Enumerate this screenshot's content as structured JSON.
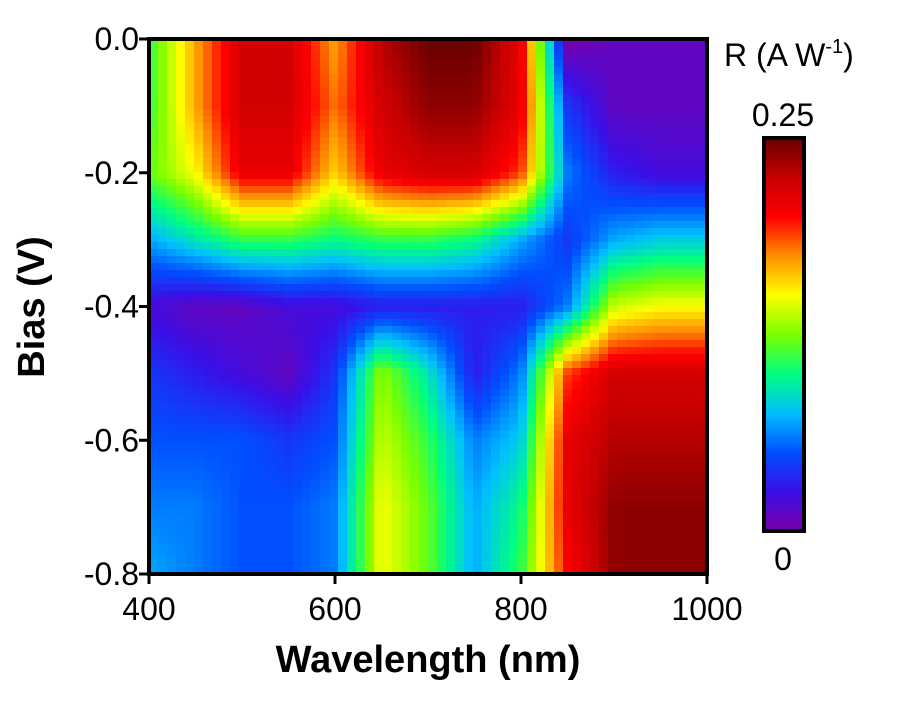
{
  "chart_data": {
    "type": "heatmap",
    "title": "",
    "xlabel": "Wavelength (nm)",
    "ylabel": "Bias (V)",
    "xlim": [
      400,
      1000
    ],
    "ylim": [
      -0.8,
      0.0
    ],
    "x_ticks": [
      {
        "value": 400,
        "label": "400"
      },
      {
        "value": 600,
        "label": "600"
      },
      {
        "value": 800,
        "label": "800"
      },
      {
        "value": 1000,
        "label": "1000"
      }
    ],
    "y_ticks": [
      {
        "value": 0.0,
        "label": "0.0"
      },
      {
        "value": -0.2,
        "label": "-0.2"
      },
      {
        "value": -0.4,
        "label": "-0.4"
      },
      {
        "value": -0.6,
        "label": "-0.6"
      },
      {
        "value": -0.8,
        "label": "-0.8"
      }
    ],
    "colorbar": {
      "label_main": "R (A W",
      "label_sup": "-1",
      "label_close": ")",
      "max_label": "0.25",
      "min_label": "0",
      "vmin": 0,
      "vmax": 0.25,
      "colormap": [
        "#7b00a8",
        "#3a10e8",
        "#0050ff",
        "#00c0ff",
        "#00ff80",
        "#7bff00",
        "#ffff00",
        "#ff9000",
        "#ff0000",
        "#c80000",
        "#6a0000"
      ]
    },
    "x": [
      400,
      450,
      500,
      550,
      600,
      650,
      700,
      750,
      800,
      850,
      900,
      950,
      1000
    ],
    "y": [
      0.0,
      -0.1,
      -0.2,
      -0.3,
      -0.4,
      -0.5,
      -0.6,
      -0.7,
      -0.8
    ],
    "z": [
      [
        0.11,
        0.17,
        0.22,
        0.22,
        0.17,
        0.23,
        0.25,
        0.25,
        0.21,
        0.0,
        0.01,
        0.01,
        0.01
      ],
      [
        0.11,
        0.17,
        0.22,
        0.22,
        0.18,
        0.22,
        0.24,
        0.24,
        0.21,
        0.04,
        0.01,
        0.01,
        0.01
      ],
      [
        0.12,
        0.15,
        0.21,
        0.21,
        0.16,
        0.21,
        0.22,
        0.22,
        0.19,
        0.06,
        0.03,
        0.02,
        0.02
      ],
      [
        0.07,
        0.09,
        0.11,
        0.11,
        0.1,
        0.11,
        0.11,
        0.1,
        0.07,
        0.04,
        0.07,
        0.08,
        0.08
      ],
      [
        0.02,
        0.01,
        0.01,
        0.02,
        0.02,
        0.03,
        0.03,
        0.03,
        0.03,
        0.06,
        0.14,
        0.15,
        0.15
      ],
      [
        0.04,
        0.03,
        0.02,
        0.01,
        0.04,
        0.13,
        0.09,
        0.03,
        0.06,
        0.19,
        0.22,
        0.22,
        0.22
      ],
      [
        0.05,
        0.05,
        0.05,
        0.04,
        0.05,
        0.14,
        0.11,
        0.06,
        0.08,
        0.21,
        0.23,
        0.23,
        0.23
      ],
      [
        0.06,
        0.06,
        0.05,
        0.05,
        0.06,
        0.15,
        0.12,
        0.07,
        0.1,
        0.21,
        0.24,
        0.24,
        0.24
      ],
      [
        0.07,
        0.06,
        0.05,
        0.05,
        0.06,
        0.15,
        0.12,
        0.07,
        0.11,
        0.2,
        0.24,
        0.24,
        0.24
      ]
    ]
  }
}
